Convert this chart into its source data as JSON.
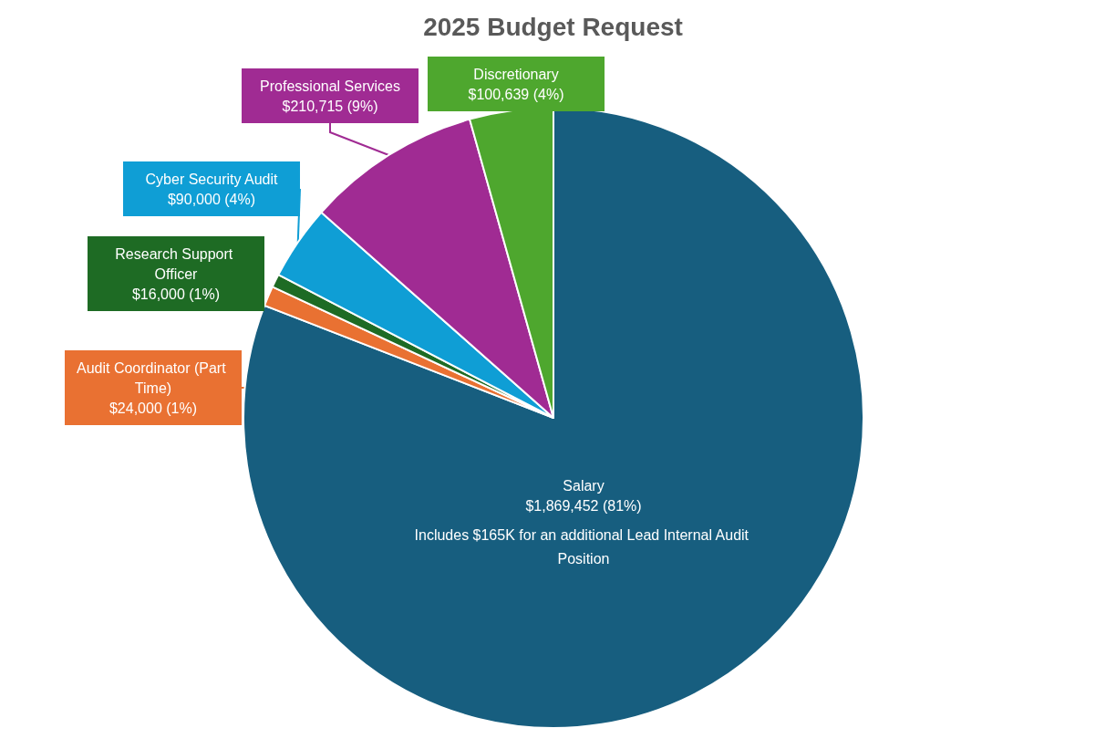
{
  "chart_data": {
    "type": "pie",
    "title": "2025 Budget Request",
    "categories": [
      "Salary",
      "Audit Coordinator (Part Time)",
      "Research Support Officer",
      "Cyber Security Audit",
      "Professional Services",
      "Discretionary"
    ],
    "values": [
      1869452,
      24000,
      16000,
      90000,
      210715,
      100639
    ],
    "value_labels": [
      "$1,869,452 (81%)",
      "$24,000 (1%)",
      "$16,000 (1%)",
      "$90,000 (4%)",
      "$210,715 (9%)",
      "$100,639 (4%)"
    ],
    "colors": [
      "#175e7f",
      "#e97132",
      "#1e6b24",
      "#0f9ed5",
      "#a02b93",
      "#4ea72e"
    ],
    "annotations": [
      "Includes $165K for an additional Lead Internal Audit Position"
    ],
    "legend": false
  }
}
